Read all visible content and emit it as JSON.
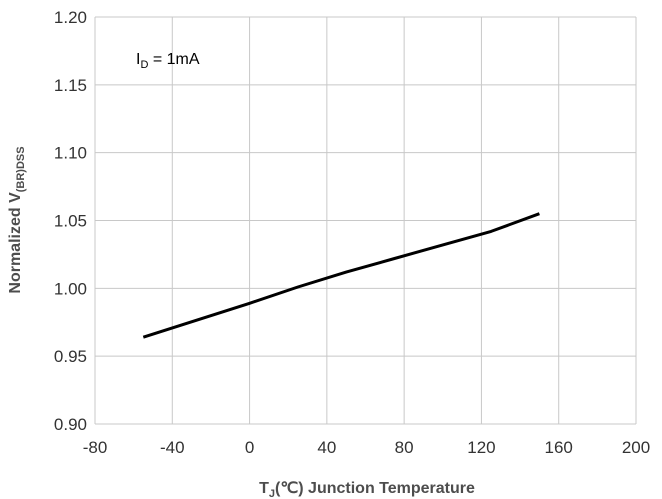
{
  "chart_data": {
    "type": "line",
    "title": "",
    "xlabel": {
      "main": "T",
      "sub": "J",
      "rest": "(℃) Junction Temperature"
    },
    "ylabel": {
      "main": "Normalized V",
      "sub": "(BR)DSS"
    },
    "annotation": {
      "main": "I",
      "sub": "D",
      "rest": " = 1mA"
    },
    "xlim": [
      -80,
      200
    ],
    "ylim": [
      0.9,
      1.2
    ],
    "xticks": [
      "-80",
      "-40",
      "0",
      "40",
      "80",
      "120",
      "160",
      "200"
    ],
    "yticks": [
      "0.90",
      "0.95",
      "1.00",
      "1.05",
      "1.10",
      "1.15",
      "1.20"
    ],
    "grid": true,
    "legend": "none",
    "series": [
      {
        "color": "#000000",
        "x": [
          -55,
          0,
          25,
          50,
          75,
          100,
          125,
          150
        ],
        "y": [
          0.964,
          0.989,
          1.001,
          1.012,
          1.022,
          1.032,
          1.042,
          1.055
        ]
      }
    ]
  }
}
